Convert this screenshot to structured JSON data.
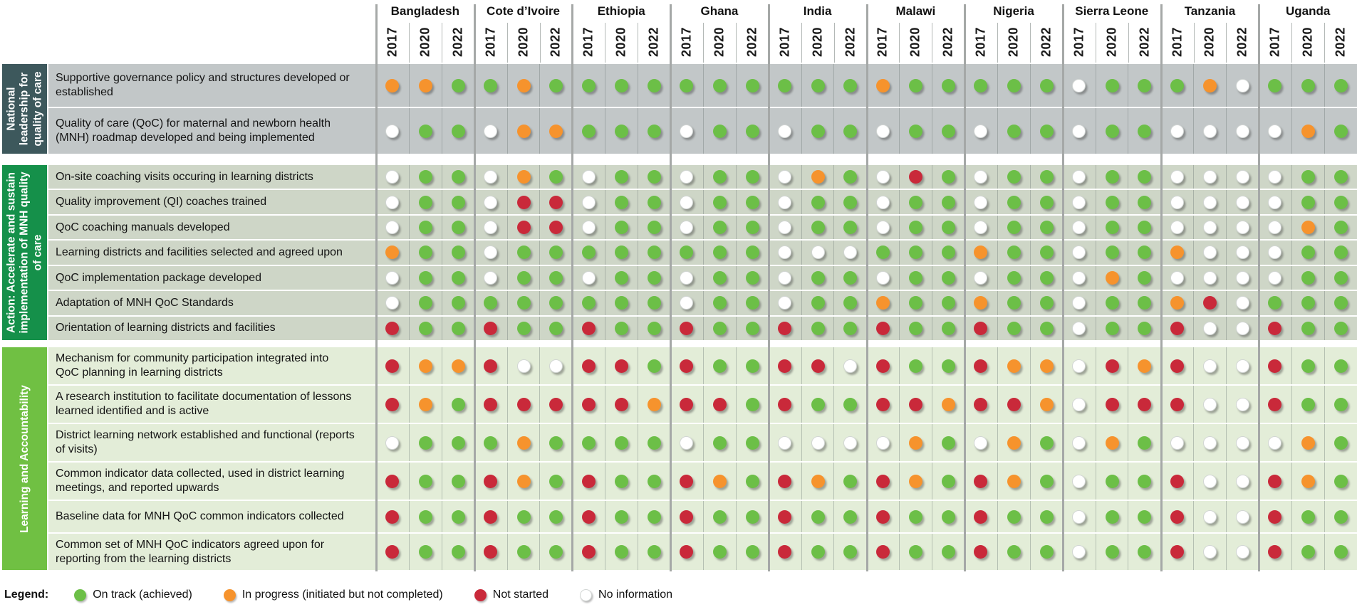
{
  "legend": {
    "prefix": "Legend:",
    "items": [
      {
        "code": "G",
        "label": "On track (achieved)",
        "color": "#6cbf47"
      },
      {
        "code": "O",
        "label": "In progress (initiated but not completed)",
        "color": "#f6932d"
      },
      {
        "code": "R",
        "label": "Not started",
        "color": "#c9293a"
      },
      {
        "code": "W",
        "label": "No information",
        "color": "#ffffff"
      }
    ]
  },
  "chart_data": {
    "type": "heatmap",
    "countries": [
      "Bangladesh",
      "Cote d’Ivoire",
      "Ethiopia",
      "Ghana",
      "India",
      "Malawi",
      "Nigeria",
      "Sierra Leone",
      "Tanzania",
      "Uganda"
    ],
    "years": [
      "2017",
      "2020",
      "2022"
    ],
    "status_codes": {
      "G": "On track (achieved)",
      "O": "In progress (initiated but not completed)",
      "R": "Not started",
      "W": "No information"
    },
    "status_colors": {
      "G": "#6cbf47",
      "O": "#f6932d",
      "R": "#c9293a",
      "W": "#ffffff"
    },
    "sections": [
      {
        "name": "National leadership for quality of care",
        "header_color": "#3d585c",
        "row_color": "#c2c7c8",
        "rows": [
          {
            "label": "Supportive governance policy and structures developed or established",
            "values": "OOG GOG GGG GGG GGG OGG GGG WGG GOW GGG"
          },
          {
            "label": "Quality of care (QoC) for maternal and newborn health (MNH) roadmap developed and being implemented",
            "values": "WGG WOO GGG WGG WGG WGG WGG WGG WWW WOG"
          }
        ]
      },
      {
        "name": "Action: Accelerate and sustain implementation of MNH quality of care",
        "header_color": "#15904a",
        "row_color": "#ced6c7",
        "rows": [
          {
            "label": "On-site coaching visits occuring in learning districts",
            "values": "WGG WOG WGG WGG WOG WRG WGG WGG WWW WGG"
          },
          {
            "label": "Quality improvement (QI) coaches trained",
            "values": "WGG WRR WGG WGG WGG WGG WGG WGG WWW WGG"
          },
          {
            "label": "QoC coaching manuals developed",
            "values": "WGG WRR WGG WGG WGG WGG WGG WGG WWW WOG"
          },
          {
            "label": "Learning districts and facilities selected and agreed upon",
            "values": "OGG WGG GGG GGG WWW GGG OGG WGG OWW WGG"
          },
          {
            "label": "QoC implementation package developed",
            "values": "WGG WGG WGG WGG WGG WGG WGG WOG WWW WGG"
          },
          {
            "label": "Adaptation of MNH QoC Standards",
            "values": "WGG GGG GGG WGG WGG OGG OGG WGG ORW GGG"
          },
          {
            "label": "Orientation of learning districts and facilities",
            "values": "RGG RGG RGG RGG RGG RGG RGG WGG RWW RGG"
          }
        ]
      },
      {
        "name": "Learning and Accountability",
        "header_color": "#70c043",
        "row_color": "#e3edd8",
        "rows": [
          {
            "label": "Mechanism for community participation integrated into QoC planning in learning districts",
            "values": "ROO RWW RRG RGG RRW RGG ROO WRO RWW RGG"
          },
          {
            "label": "A research institution to facilitate documentation of lessons learned identified and is active",
            "values": "ROG RRR RRO RRG RGG RRO RRO WRR RWW RGG"
          },
          {
            "label": "District learning network established and functional (reports of visits)",
            "values": "WGG GOG GGG WGG WWW WOG WOG WOG WWW WOG"
          },
          {
            "label": "Common indicator data collected, used in district learning meetings, and reported upwards",
            "values": "RGG ROG RGG ROG ROG ROG ROG WGG RWW ROG"
          },
          {
            "label": "Baseline data for MNH QoC common indicators collected",
            "values": "RGG RGG RGG RGG RGG RGG RGG WGG RWW RGG"
          },
          {
            "label": "Common set of MNH QoC indicators agreed upon for reporting from the learning districts",
            "values": "RGG RGG RGG RGG RGG RGG RGG WGG RWW RGG"
          }
        ]
      }
    ]
  }
}
